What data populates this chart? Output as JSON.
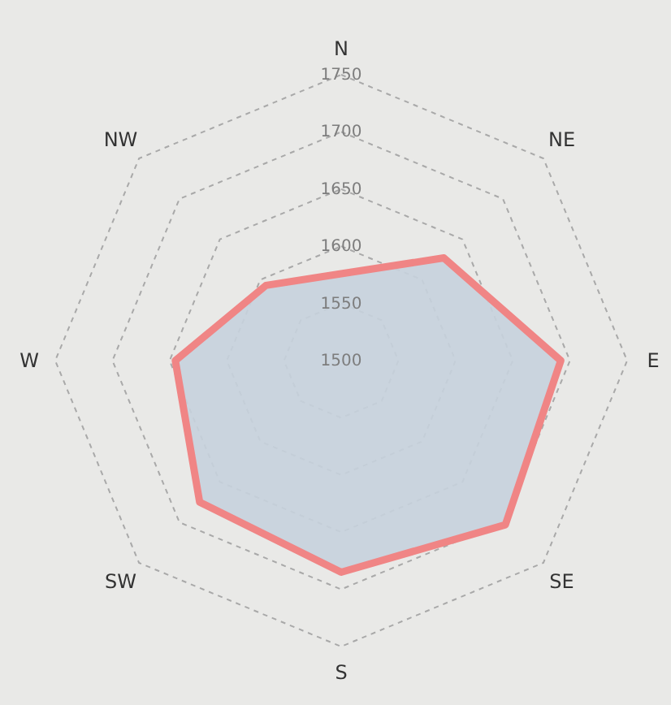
{
  "chart_data": {
    "type": "radar",
    "categories": [
      "N",
      "NE",
      "E",
      "SE",
      "S",
      "SW",
      "W",
      "NW"
    ],
    "series": [
      {
        "color": "#f08585",
        "values": [
          1576,
          1627,
          1692,
          1703,
          1685,
          1675,
          1645,
          1593
        ]
      }
    ],
    "ylim": [
      1500,
      1750
    ],
    "yticks": [
      1500,
      1550,
      1600,
      1650,
      1700,
      1750
    ],
    "grid": true,
    "marker": "none",
    "line_style": "solid"
  }
}
